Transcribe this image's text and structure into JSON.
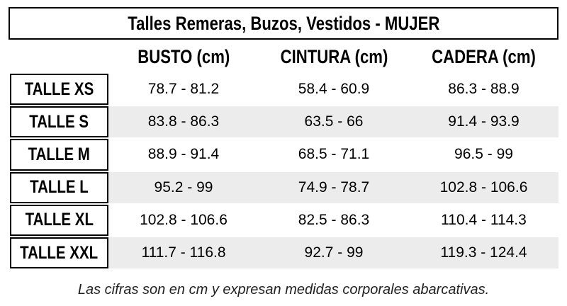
{
  "title": "Talles Remeras, Buzos, Vestidos - MUJER",
  "table": {
    "headers": [
      "BUSTO (cm)",
      "CINTURA (cm)",
      "CADERA (cm)"
    ],
    "rows": [
      {
        "label": "TALLE XS",
        "values": [
          "78.7 - 81.2",
          "58.4 - 60.9",
          "86.3 - 88.9"
        ]
      },
      {
        "label": "TALLE S",
        "values": [
          "83.8 - 86.3",
          "63.5 - 66",
          "91.4 - 93.9"
        ]
      },
      {
        "label": "TALLE M",
        "values": [
          "88.9 - 91.4",
          "68.5 - 71.1",
          "96.5 - 99"
        ]
      },
      {
        "label": "TALLE L",
        "values": [
          "95.2 - 99",
          "74.9 - 78.7",
          "102.8 - 106.6"
        ]
      },
      {
        "label": "TALLE XL",
        "values": [
          "102.8 - 106.6",
          "82.5 - 86.3",
          "110.4 - 114.3"
        ]
      },
      {
        "label": "TALLE XXL",
        "values": [
          "111.7 - 116.8",
          "92.7 - 99",
          "119.3 - 124.4"
        ]
      }
    ]
  },
  "footnote": "Las cifras son en cm y expresan medidas corporales abarcativas."
}
